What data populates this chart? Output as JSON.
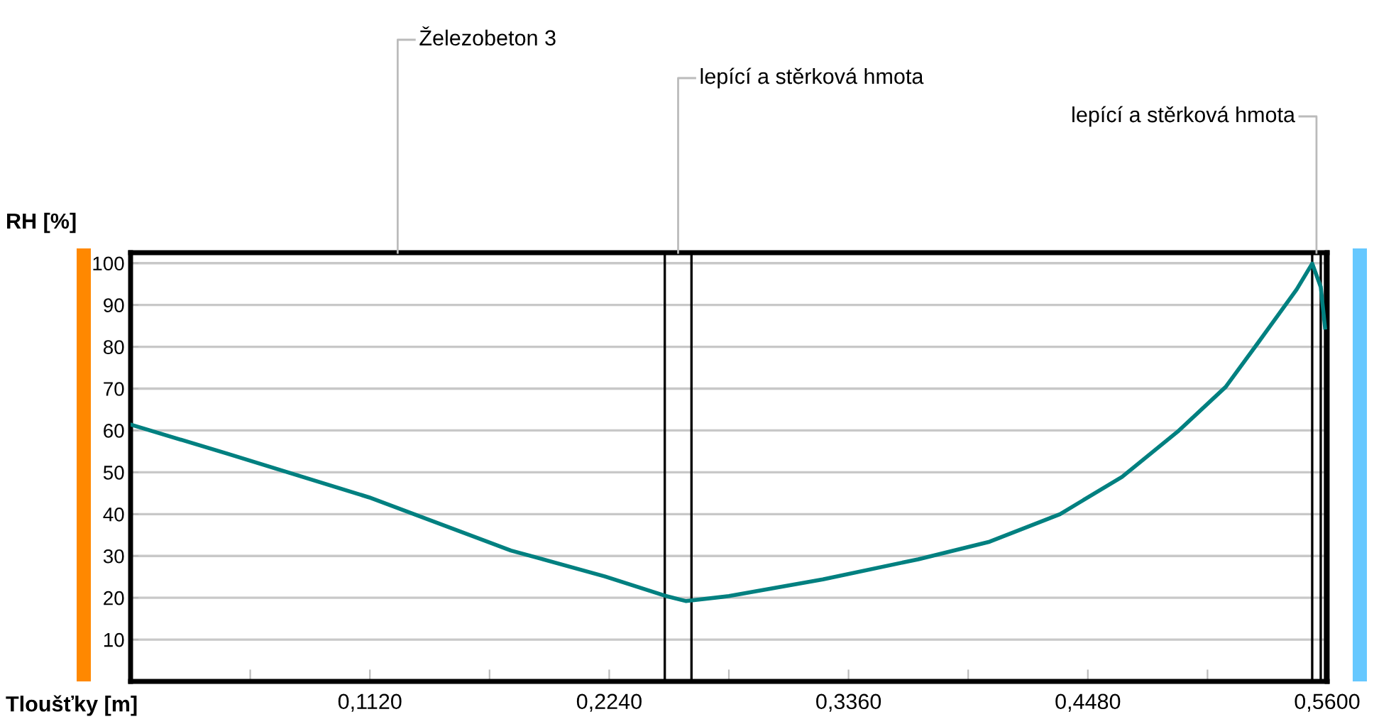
{
  "chart_data": {
    "type": "line",
    "xlabel": "Tloušťky [m]",
    "ylabel": "RH [%]",
    "x": [
      0,
      0.045,
      0.1116,
      0.178,
      0.222,
      0.25,
      0.26,
      0.28,
      0.324,
      0.3686,
      0.402,
      0.435,
      0.464,
      0.49,
      0.5125,
      0.528,
      0.5457,
      0.553,
      0.557,
      0.559
    ],
    "series": [
      {
        "color": "#008080",
        "values": [
          61.4,
          54.5,
          44.0,
          31.3,
          25.1,
          20.5,
          19.2,
          20.4,
          24.4,
          29.2,
          33.4,
          40.0,
          48.9,
          59.7,
          70.4,
          81.2,
          93.7,
          99.9,
          94.3,
          84.6
        ]
      }
    ],
    "xlim": [
      0,
      0.56
    ],
    "ylim": [
      0,
      102.5
    ],
    "xticks": [
      {
        "value": 0.056,
        "label": null
      },
      {
        "value": 0.112,
        "label": "0,1120"
      },
      {
        "value": 0.168,
        "label": null
      },
      {
        "value": 0.224,
        "label": "0,2240"
      },
      {
        "value": 0.28,
        "label": null
      },
      {
        "value": 0.336,
        "label": "0,3360"
      },
      {
        "value": 0.392,
        "label": null
      },
      {
        "value": 0.448,
        "label": "0,4480"
      },
      {
        "value": 0.504,
        "label": null
      },
      {
        "value": 0.56,
        "label": "0,5600"
      }
    ],
    "yticks": [
      10,
      20,
      30,
      40,
      50,
      60,
      70,
      80,
      90,
      100
    ],
    "grid": "y",
    "marker": "none",
    "line_style": "solid",
    "legend": false,
    "ref_lines": [
      {
        "axis": "x",
        "value": 0.25,
        "color": "#000000"
      },
      {
        "axis": "x",
        "value": 0.2625,
        "color": "#000000"
      },
      {
        "axis": "x",
        "value": 0.553,
        "color": "#000000"
      },
      {
        "axis": "x",
        "value": 0.557,
        "color": "#000000"
      },
      {
        "axis": "x",
        "value": 0.559,
        "color": "#000000"
      }
    ],
    "annotations": [
      "Železobeton 3",
      "lepící a stěrková hmota",
      "lepící a stěrková hmota"
    ]
  }
}
